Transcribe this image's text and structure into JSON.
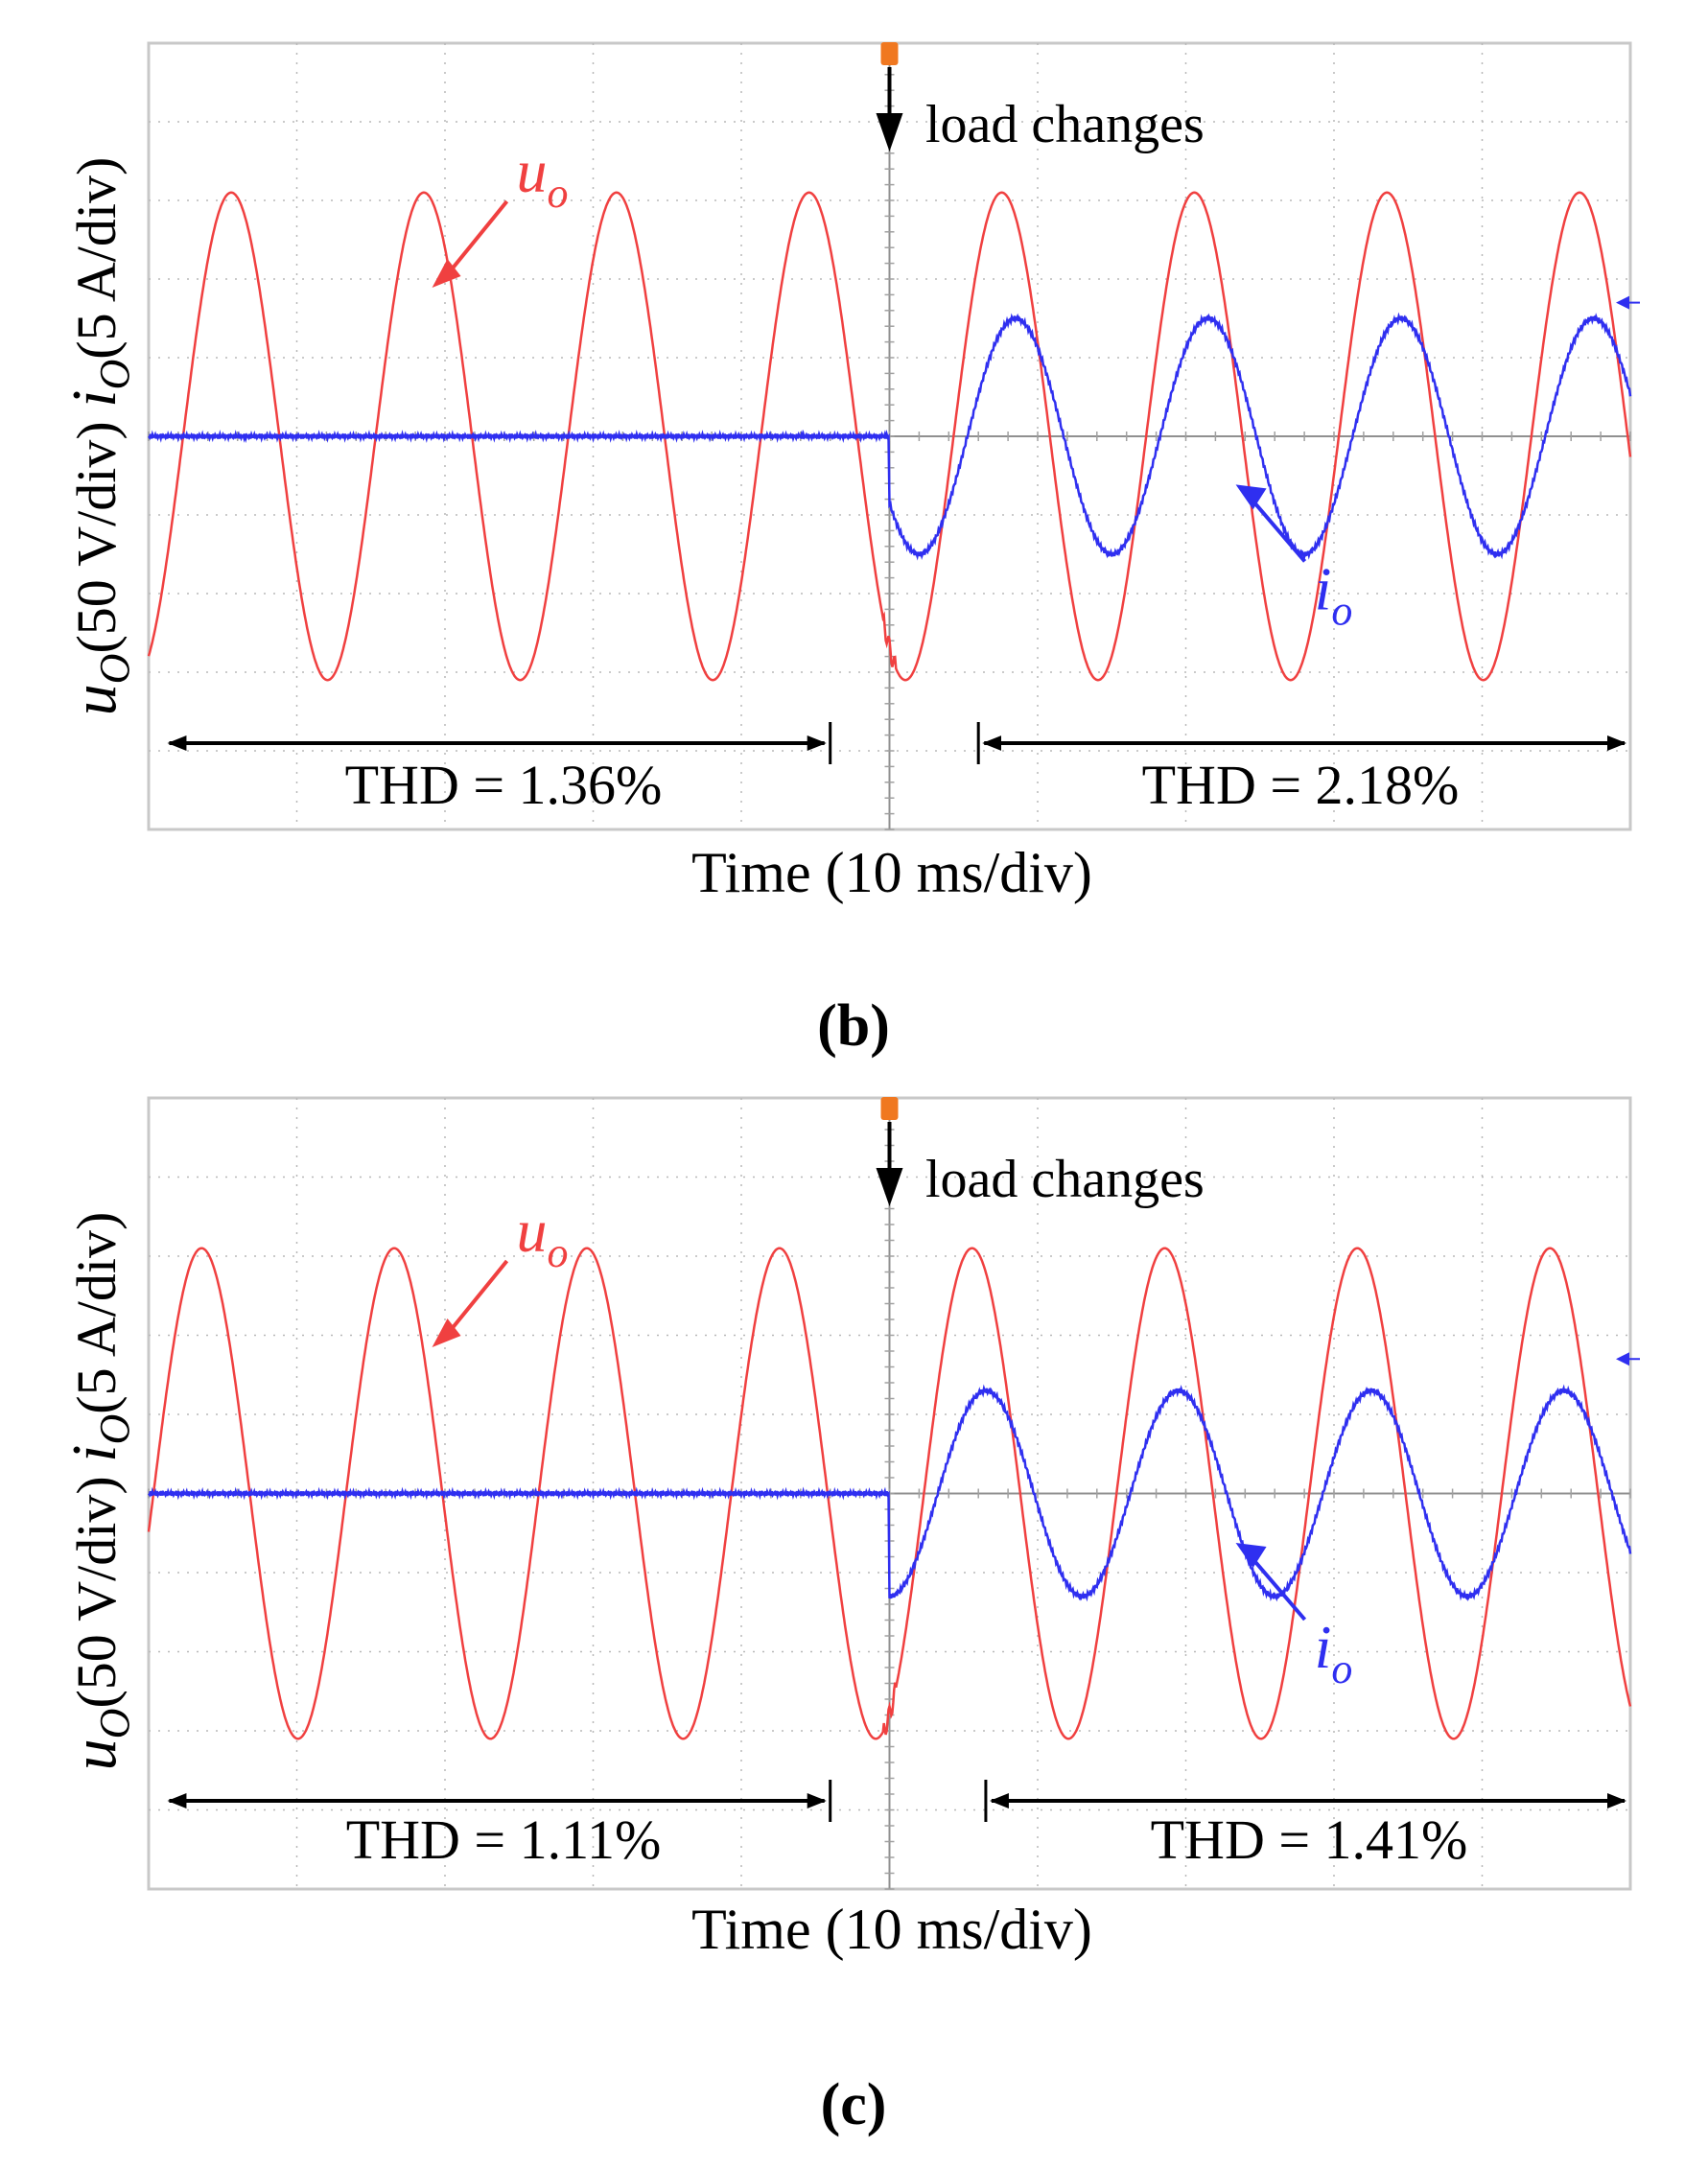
{
  "colors": {
    "voltage": "#f04040",
    "current": "#2f2ff0",
    "grid": "#b8b8b8",
    "frame": "#c8c8c8",
    "trigger": "#f07820"
  },
  "chart_data": [
    {
      "type": "line",
      "panel_label": "(b)",
      "xlabel": "Time (10 ms/div)",
      "ylabel_voltage_sym": "u",
      "ylabel_voltage_sub": "O",
      "ylabel_voltage_text": "(50 V/div)",
      "ylabel_current_sym": "i",
      "ylabel_current_sub": "O",
      "ylabel_current_text": "(5 A/div)",
      "x_divisions": 10,
      "y_divisions": 10,
      "load_change_label": "load changes",
      "load_change_div": 5,
      "series": [
        {
          "name": "u_o",
          "label_sym": "u",
          "label_sub": "o",
          "amplitude_div": 3.1,
          "period_div": 1.3,
          "phase_div": 0.2,
          "offset_div": 0
        },
        {
          "name": "i_o",
          "label_sym": "i",
          "label_sub": "o",
          "amplitude_div_after": 1.5,
          "amplitude_div_before": 0,
          "period_div": 1.3,
          "offset_div": 0
        }
      ],
      "annotations": [
        {
          "text": "THD = 1.36%",
          "from_div": 0.1,
          "to_div": 4.6
        },
        {
          "text": "THD = 2.18%",
          "from_div": 5.6,
          "to_div": 10.0
        }
      ]
    },
    {
      "type": "line",
      "panel_label": "(c)",
      "xlabel": "Time (10 ms/div)",
      "ylabel_voltage_sym": "u",
      "ylabel_voltage_sub": "O",
      "ylabel_voltage_text": "(50 V/div)",
      "ylabel_current_sym": "i",
      "ylabel_current_sub": "O",
      "ylabel_current_text": "(5 A/div)",
      "x_divisions": 10,
      "y_divisions": 10,
      "load_change_label": "load changes",
      "load_change_div": 5,
      "series": [
        {
          "name": "u_o",
          "label_sym": "u",
          "label_sub": "o",
          "amplitude_div": 3.1,
          "period_div": 1.3,
          "phase_div": 0.0,
          "offset_div": 0
        },
        {
          "name": "i_o",
          "label_sym": "i",
          "label_sub": "o",
          "amplitude_div_after": 1.3,
          "amplitude_div_before": 0,
          "period_div": 1.3,
          "offset_div": 0
        }
      ],
      "annotations": [
        {
          "text": "THD = 1.11%",
          "from_div": 0.1,
          "to_div": 4.6
        },
        {
          "text": "THD = 1.41%",
          "from_div": 5.65,
          "to_div": 10.0
        }
      ]
    }
  ]
}
